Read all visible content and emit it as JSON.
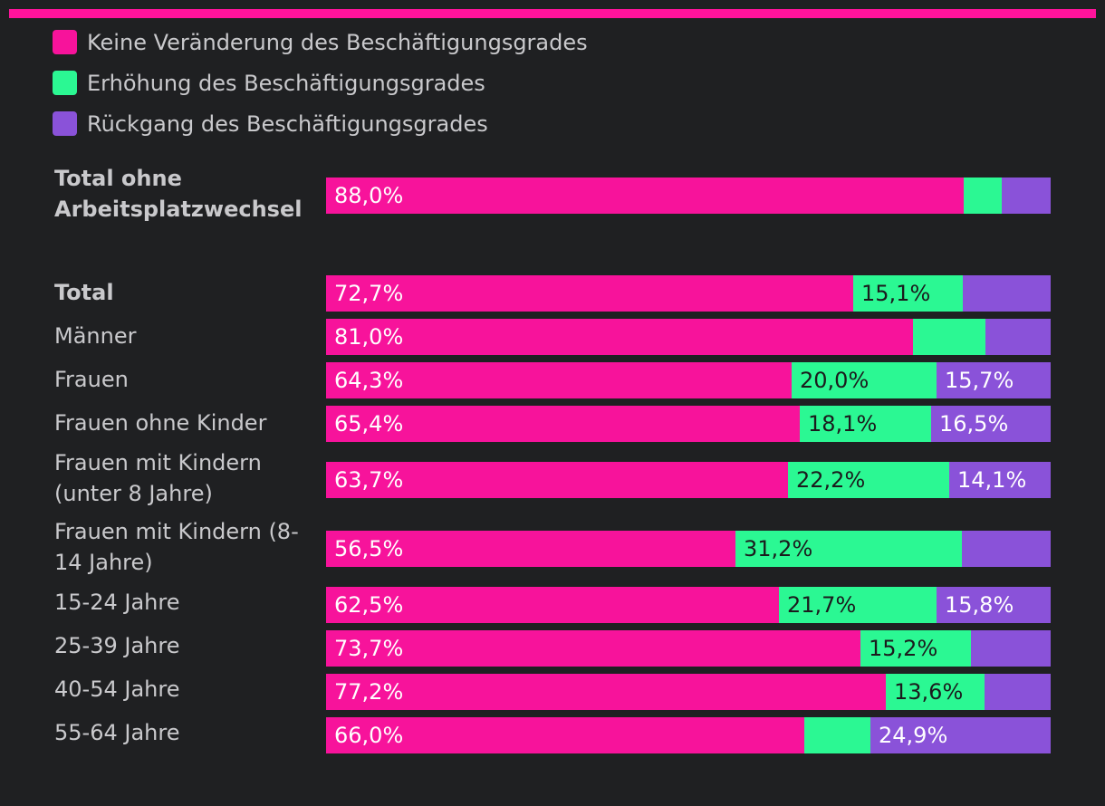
{
  "chart_data": {
    "type": "stacked-bar-horizontal",
    "colors": {
      "keine": "#f7139b",
      "erhoehung": "#2bf893",
      "rueckgang": "#8a52d9",
      "accent": "#ff139b"
    },
    "legend": [
      {
        "key": "keine",
        "label": "Keine Veränderung des Beschäftigungsgrades"
      },
      {
        "key": "erhoehung",
        "label": "Erhöhung des Beschäftigungsgrades"
      },
      {
        "key": "rueckgang",
        "label": "Rückgang des Beschäftigungsgrades"
      }
    ],
    "rows": [
      {
        "label": "Total ohne Arbeitsplatzwechsel",
        "bold": true,
        "values": [
          88.0,
          5.3,
          6.7
        ],
        "labels": [
          "88,0%",
          "",
          ""
        ]
      },
      {
        "label": "Total",
        "bold": true,
        "values": [
          72.7,
          15.1,
          12.2
        ],
        "labels": [
          "72,7%",
          "15,1%",
          ""
        ]
      },
      {
        "label": "Männer",
        "bold": false,
        "values": [
          81.0,
          10.0,
          9.0
        ],
        "labels": [
          "81,0%",
          "",
          ""
        ]
      },
      {
        "label": "Frauen",
        "bold": false,
        "values": [
          64.3,
          20.0,
          15.7
        ],
        "labels": [
          "64,3%",
          "20,0%",
          "15,7%"
        ]
      },
      {
        "label": "Frauen ohne Kinder",
        "bold": false,
        "values": [
          65.4,
          18.1,
          16.5
        ],
        "labels": [
          "65,4%",
          "18,1%",
          "16,5%"
        ]
      },
      {
        "label": "Frauen mit Kindern (unter 8 Jahre)",
        "bold": false,
        "values": [
          63.7,
          22.2,
          14.1
        ],
        "labels": [
          "63,7%",
          "22,2%",
          "14,1%"
        ]
      },
      {
        "label": "Frauen mit Kindern (8-14 Jahre)",
        "bold": false,
        "values": [
          56.5,
          31.2,
          12.3
        ],
        "labels": [
          "56,5%",
          "31,2%",
          ""
        ]
      },
      {
        "label": "15-24 Jahre",
        "bold": false,
        "values": [
          62.5,
          21.7,
          15.8
        ],
        "labels": [
          "62,5%",
          "21,7%",
          "15,8%"
        ]
      },
      {
        "label": "25-39 Jahre",
        "bold": false,
        "values": [
          73.7,
          15.2,
          11.1
        ],
        "labels": [
          "73,7%",
          "15,2%",
          ""
        ]
      },
      {
        "label": "40-54 Jahre",
        "bold": false,
        "values": [
          77.2,
          13.6,
          9.2
        ],
        "labels": [
          "77,2%",
          "13,6%",
          ""
        ]
      },
      {
        "label": "55-64 Jahre",
        "bold": false,
        "values": [
          66.0,
          9.1,
          24.9
        ],
        "labels": [
          "66,0%",
          "",
          "24,9%"
        ]
      }
    ]
  }
}
